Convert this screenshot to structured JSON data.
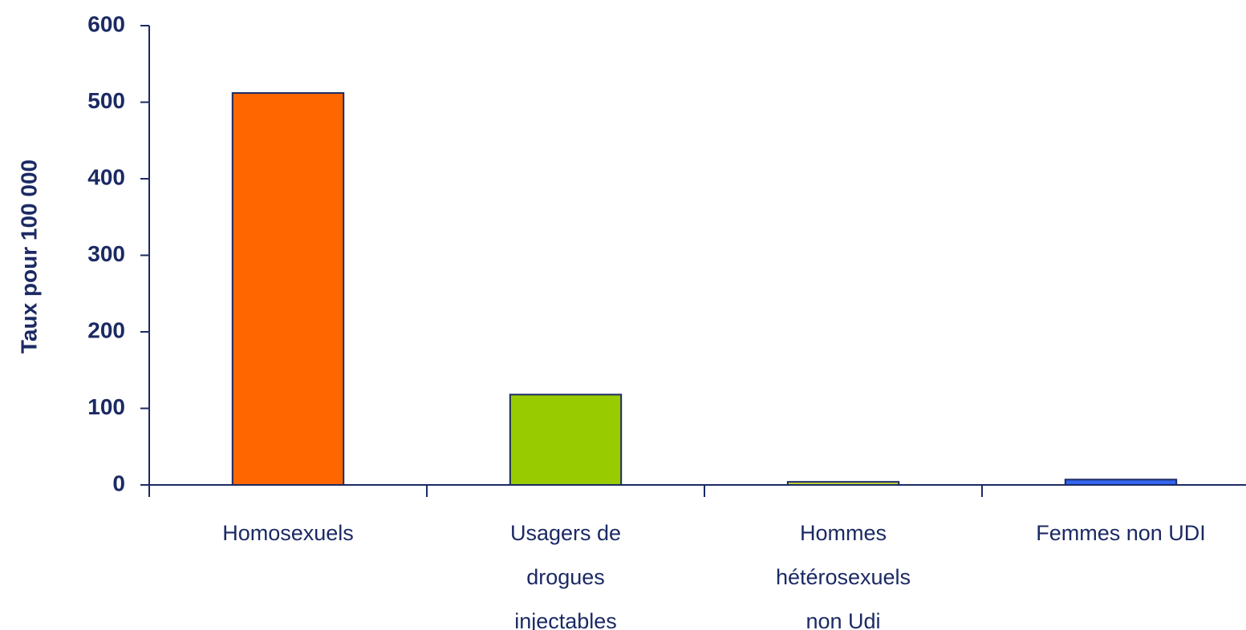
{
  "chart_data": {
    "type": "bar",
    "y_label": "Taux pour 100 000",
    "categories": [
      "Homosexuels",
      "Usagers de\ndrogues\ninjectables",
      "Hommes\nhétérosexuels\nnon Udi",
      "Femmes non UDI"
    ],
    "values": [
      512,
      118,
      4,
      7
    ],
    "colors": [
      "#ff6600",
      "#99cc00",
      "#ccdd33",
      "#3366ee"
    ],
    "ylim": [
      0,
      600
    ],
    "yticks": [
      0,
      100,
      200,
      300,
      400,
      500,
      600
    ],
    "grid": false
  }
}
